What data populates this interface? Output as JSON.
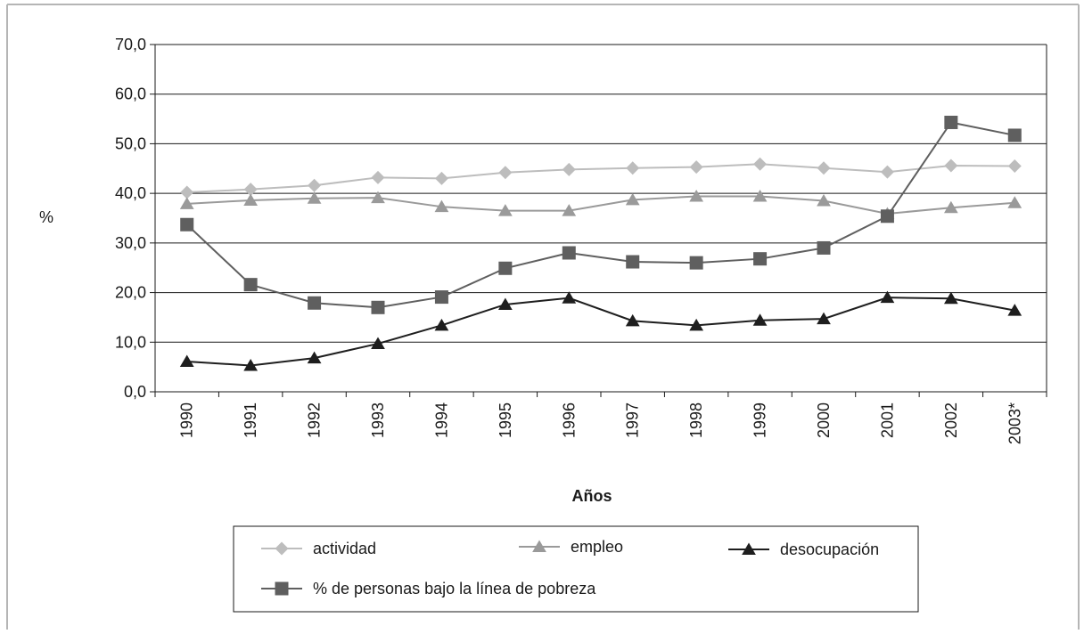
{
  "chart_data": {
    "type": "line",
    "title": "",
    "xlabel": "Años",
    "ylabel": "%",
    "categories": [
      "1990",
      "1991",
      "1992",
      "1993",
      "1994",
      "1995",
      "1996",
      "1997",
      "1998",
      "1999",
      "2000",
      "2001",
      "2002",
      "2003*"
    ],
    "ylim": [
      0,
      70
    ],
    "yticks": [
      "0,0",
      "10,0",
      "20,0",
      "30,0",
      "40,0",
      "50,0",
      "60,0",
      "70,0"
    ],
    "grid": true,
    "legend_position": "bottom",
    "series": [
      {
        "name": "actividad",
        "marker": "diamond",
        "color": "#bdbdbd",
        "values": [
          40.2,
          40.8,
          41.6,
          43.2,
          43.0,
          44.2,
          44.8,
          45.1,
          45.3,
          45.9,
          45.1,
          44.3,
          45.6,
          45.5
        ]
      },
      {
        "name": "empleo",
        "marker": "triangle",
        "color": "#9a9a9a",
        "values": [
          37.9,
          38.6,
          39.0,
          39.1,
          37.3,
          36.5,
          36.5,
          38.7,
          39.4,
          39.4,
          38.5,
          35.9,
          37.1,
          38.1
        ]
      },
      {
        "name": "desocupación",
        "marker": "triangle",
        "color": "#1e1e1e",
        "values": [
          6.1,
          5.3,
          6.8,
          9.7,
          13.4,
          17.6,
          18.9,
          14.3,
          13.4,
          14.4,
          14.7,
          19.0,
          18.8,
          16.4
        ]
      },
      {
        "name": "% de personas bajo la línea de pobreza",
        "marker": "square",
        "color": "#5f5f5f",
        "values": [
          33.7,
          21.6,
          17.9,
          17.0,
          19.1,
          24.9,
          28.0,
          26.2,
          26.0,
          26.8,
          29.0,
          35.4,
          54.3,
          51.7
        ]
      }
    ]
  }
}
